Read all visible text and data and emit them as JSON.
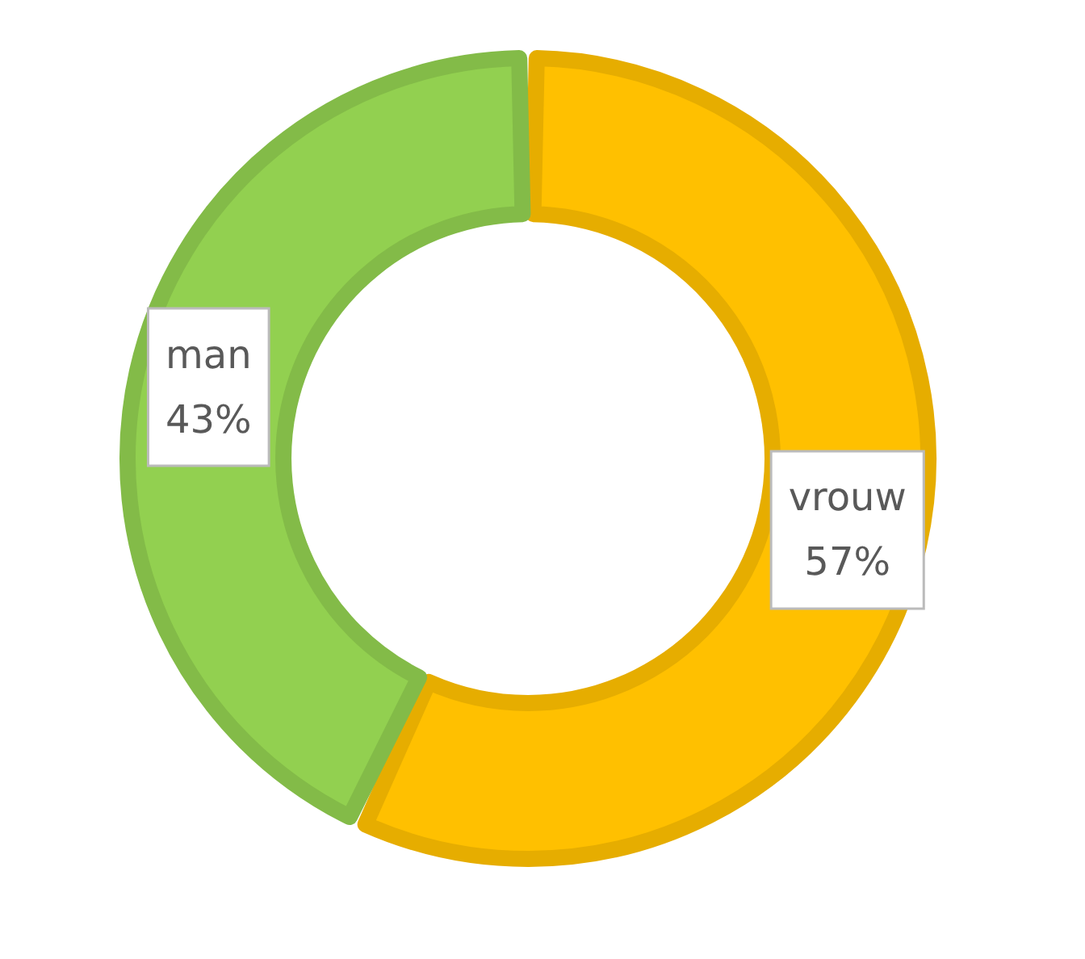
{
  "chart_data": {
    "type": "donut",
    "categories": [
      "vrouw",
      "man"
    ],
    "values": [
      57,
      43
    ],
    "colors": [
      "#ffc000",
      "#92d050"
    ],
    "value_labels": [
      "57%",
      "43%"
    ],
    "legend": false
  }
}
